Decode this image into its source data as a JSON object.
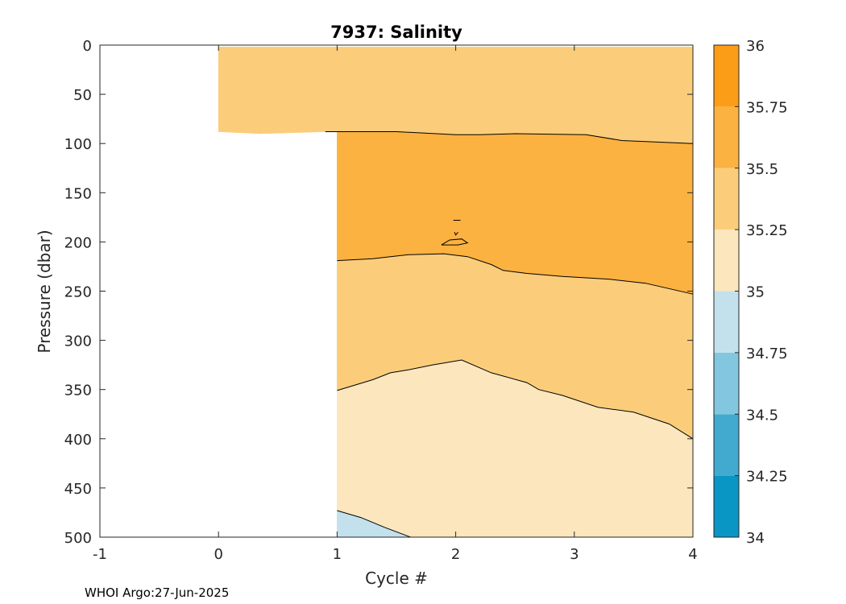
{
  "chart_data": {
    "type": "contour",
    "title": "7937:  Salinity",
    "xlabel": "Cycle #",
    "ylabel": "Pressure (dbar)",
    "xlim": [
      -1,
      4
    ],
    "ylim": [
      0,
      500
    ],
    "y_reversed": true,
    "x_ticks": [
      "-1",
      "0",
      "1",
      "2",
      "3",
      "4"
    ],
    "y_ticks": [
      "0",
      "50",
      "100",
      "150",
      "200",
      "250",
      "300",
      "350",
      "400",
      "450",
      "500"
    ],
    "colorbar": {
      "levels": [
        34,
        34.25,
        34.5,
        34.75,
        35,
        35.25,
        35.5,
        35.75,
        36
      ],
      "tick_labels": [
        "34",
        "34.25",
        "34.5",
        "34.75",
        "35",
        "35.25",
        "35.5",
        "35.75",
        "36"
      ],
      "colors": [
        "#0a96c4",
        "#42aacf",
        "#82c6df",
        "#c2e1ec",
        "#fce6bd",
        "#fbcd7b",
        "#fcb240",
        "#fb9d17"
      ]
    },
    "regions": [
      {
        "band": "35.25-35.5",
        "color": "#fbcd7b",
        "polygon": [
          [
            0,
            2
          ],
          [
            4,
            2
          ],
          [
            4,
            100
          ],
          [
            3.4,
            97
          ],
          [
            3.1,
            91
          ],
          [
            2.5,
            90
          ],
          [
            2.2,
            91
          ],
          [
            2,
            91
          ],
          [
            1.5,
            88
          ],
          [
            0.9,
            88
          ],
          [
            0.9,
            88
          ],
          [
            0.35,
            90
          ],
          [
            0,
            88
          ]
        ]
      },
      {
        "band": "35.5-35.75",
        "color": "#fcb240",
        "polygon": [
          [
            1,
            88
          ],
          [
            1.5,
            88
          ],
          [
            2,
            91
          ],
          [
            2.2,
            91
          ],
          [
            2.5,
            90
          ],
          [
            3.1,
            91
          ],
          [
            3.4,
            97
          ],
          [
            4,
            100
          ],
          [
            4,
            253
          ],
          [
            3.6,
            242
          ],
          [
            3.3,
            238
          ],
          [
            2.9,
            235
          ],
          [
            2.6,
            232
          ],
          [
            2.4,
            229
          ],
          [
            2.3,
            223
          ],
          [
            2.1,
            215
          ],
          [
            1.9,
            212
          ],
          [
            1.6,
            213
          ],
          [
            1.3,
            217
          ],
          [
            1,
            219
          ]
        ]
      },
      {
        "band": "35.25-35.5",
        "color": "#fbcd7b",
        "polygon": [
          [
            1,
            219
          ],
          [
            1.3,
            217
          ],
          [
            1.6,
            213
          ],
          [
            1.9,
            212
          ],
          [
            2.1,
            215
          ],
          [
            2.3,
            223
          ],
          [
            2.4,
            229
          ],
          [
            2.6,
            232
          ],
          [
            2.9,
            235
          ],
          [
            3.3,
            238
          ],
          [
            3.6,
            242
          ],
          [
            4,
            253
          ],
          [
            4,
            400
          ],
          [
            3.8,
            385
          ],
          [
            3.5,
            373
          ],
          [
            3.2,
            368
          ],
          [
            2.9,
            356
          ],
          [
            2.7,
            350
          ],
          [
            2.6,
            343
          ],
          [
            2.3,
            333
          ],
          [
            2.05,
            320
          ],
          [
            1.8,
            325
          ],
          [
            1.6,
            330
          ],
          [
            1.45,
            333
          ],
          [
            1.3,
            340
          ],
          [
            1,
            351
          ]
        ]
      },
      {
        "band": "35-35.25",
        "color": "#fce6bd",
        "polygon": [
          [
            1,
            351
          ],
          [
            1.3,
            340
          ],
          [
            1.45,
            333
          ],
          [
            1.6,
            330
          ],
          [
            1.8,
            325
          ],
          [
            2.05,
            320
          ],
          [
            2.3,
            333
          ],
          [
            2.6,
            343
          ],
          [
            2.7,
            350
          ],
          [
            2.9,
            356
          ],
          [
            3.2,
            368
          ],
          [
            3.5,
            373
          ],
          [
            3.8,
            385
          ],
          [
            4,
            400
          ],
          [
            4,
            501
          ],
          [
            1.62,
            501
          ],
          [
            1.4,
            490
          ],
          [
            1.2,
            480
          ],
          [
            1,
            473
          ]
        ]
      },
      {
        "band": "34.75-35",
        "color": "#c2e1ec",
        "polygon": [
          [
            1,
            473
          ],
          [
            1.2,
            480
          ],
          [
            1.4,
            490
          ],
          [
            1.62,
            501
          ],
          [
            1,
            501
          ]
        ]
      },
      {
        "band": "35.5-35.75",
        "color": "#fcb240",
        "polygon": [
          [
            1.88,
            203
          ],
          [
            1.95,
            198
          ],
          [
            2.05,
            197
          ],
          [
            2.1,
            201
          ],
          [
            2.02,
            203
          ]
        ]
      }
    ],
    "contour_lines": [
      [
        [
          0.9,
          88
        ],
        [
          1,
          88
        ],
        [
          1.5,
          88
        ],
        [
          2,
          91
        ],
        [
          2.2,
          91
        ],
        [
          2.5,
          90
        ],
        [
          3.1,
          91
        ],
        [
          3.4,
          97
        ],
        [
          4,
          100
        ]
      ],
      [
        [
          1,
          219
        ],
        [
          1.3,
          217
        ],
        [
          1.6,
          213
        ],
        [
          1.9,
          212
        ],
        [
          2.1,
          215
        ],
        [
          2.3,
          223
        ],
        [
          2.4,
          229
        ],
        [
          2.6,
          232
        ],
        [
          2.9,
          235
        ],
        [
          3.3,
          238
        ],
        [
          3.6,
          242
        ],
        [
          4,
          253
        ]
      ],
      [
        [
          1,
          351
        ],
        [
          1.3,
          340
        ],
        [
          1.45,
          333
        ],
        [
          1.6,
          330
        ],
        [
          1.8,
          325
        ],
        [
          2.05,
          320
        ],
        [
          2.3,
          333
        ],
        [
          2.6,
          343
        ],
        [
          2.7,
          350
        ],
        [
          2.9,
          356
        ],
        [
          3.2,
          368
        ],
        [
          3.5,
          373
        ],
        [
          3.8,
          385
        ],
        [
          4,
          400
        ]
      ],
      [
        [
          1,
          473
        ],
        [
          1.2,
          480
        ],
        [
          1.4,
          490
        ],
        [
          1.62,
          501
        ]
      ],
      [
        [
          1.88,
          203
        ],
        [
          1.95,
          198
        ],
        [
          2.05,
          197
        ],
        [
          2.1,
          201
        ],
        [
          2.02,
          203
        ],
        [
          1.88,
          203
        ]
      ],
      [
        [
          1.98,
          178
        ],
        [
          2.04,
          178
        ]
      ],
      [
        [
          1.99,
          190
        ],
        [
          2.0,
          193
        ],
        [
          2.02,
          190
        ]
      ]
    ]
  },
  "footer": {
    "text": "WHOI Argo:27-Jun-2025"
  }
}
